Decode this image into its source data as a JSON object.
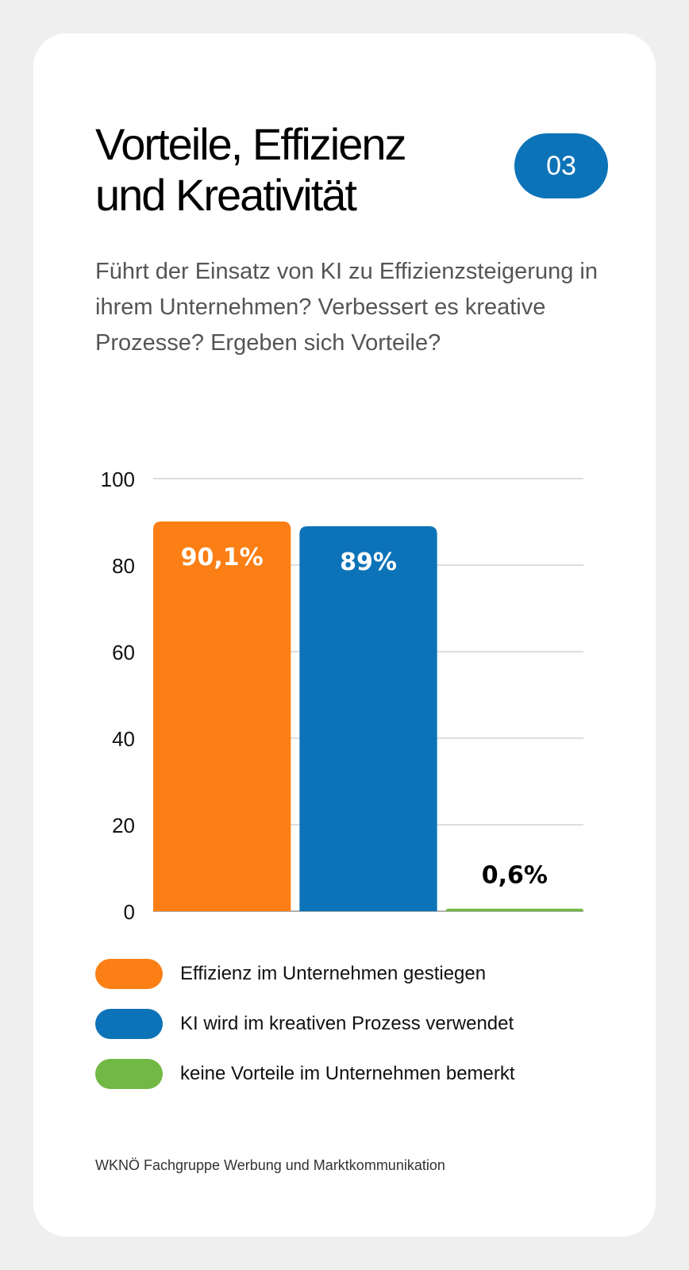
{
  "header": {
    "title": "Vorteile, Effizienz und Kreativität",
    "badge": "03",
    "subtitle": "Führt der Einsatz von KI zu Effizienzsteigerung in ihrem Unternehmen? Verbessert es kreative Prozesse? Ergeben sich Vorteile?"
  },
  "chart_data": {
    "type": "bar",
    "categories": [
      "Effizienz im Unternehmen gestiegen",
      "KI wird im kreativen Prozess verwendet",
      "keine Vorteile im Unternehmen bemerkt"
    ],
    "values": [
      90.1,
      89,
      0.6
    ],
    "data_labels": [
      "90,1%",
      "89%",
      "0,6%"
    ],
    "colors": [
      "#fb7f14",
      "#0d73b8",
      "#72b845"
    ],
    "ylim": [
      0,
      100
    ],
    "yticks": [
      0,
      20,
      40,
      60,
      80,
      100
    ],
    "grid": true,
    "legend_placement": "bottom"
  },
  "legend": [
    {
      "label": "Effizienz im Unternehmen gestiegen",
      "color": "#fb7f14"
    },
    {
      "label": "KI wird im kreativen Prozess verwendet",
      "color": "#0d73b8"
    },
    {
      "label": "keine Vorteile im Unternehmen bemerkt",
      "color": "#72b845"
    }
  ],
  "footer": "WKNÖ Fachgruppe Werbung und Marktkommunikation"
}
